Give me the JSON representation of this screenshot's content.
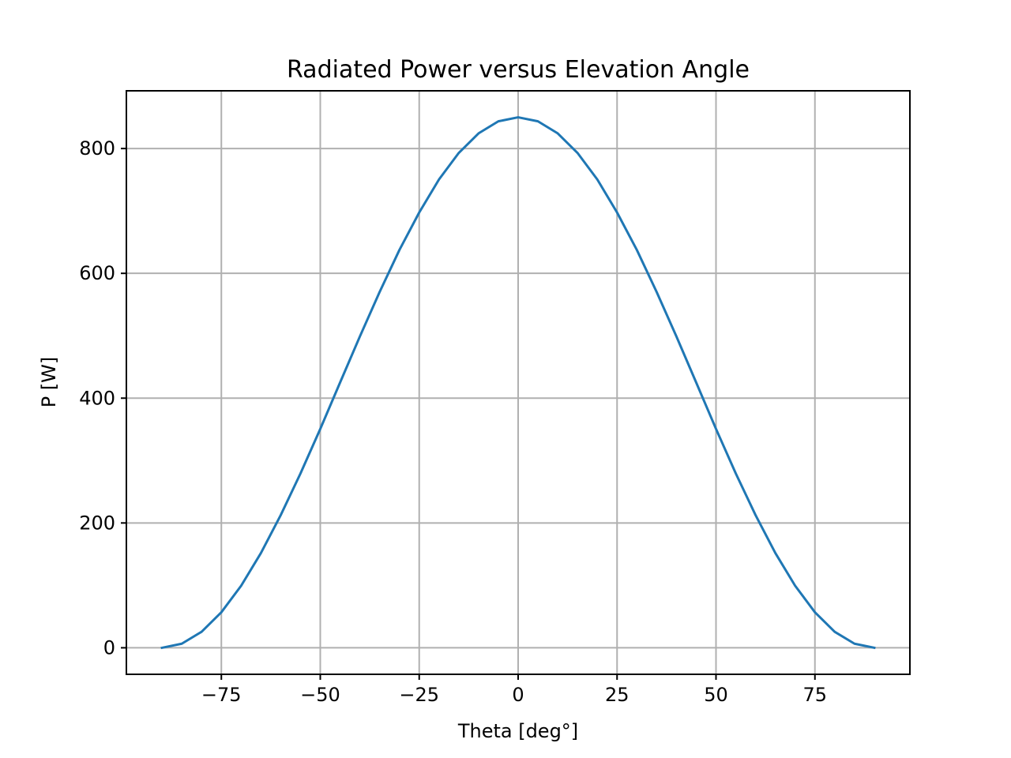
{
  "chart_data": {
    "type": "line",
    "title": "Radiated Power versus Elevation Angle",
    "xlabel": "Theta [deg°]",
    "ylabel": "P [W]",
    "xlim": [
      -99,
      99
    ],
    "ylim": [
      -42.5,
      892.5
    ],
    "x_ticks": [
      -75,
      -50,
      -25,
      0,
      25,
      50,
      75
    ],
    "x_tick_labels": [
      "−75",
      "−50",
      "−25",
      "0",
      "25",
      "50",
      "75"
    ],
    "y_ticks": [
      0,
      200,
      400,
      600,
      800
    ],
    "y_tick_labels": [
      "0",
      "200",
      "400",
      "600",
      "800"
    ],
    "grid": true,
    "legend": "none",
    "series": [
      {
        "color": "#1f77b4",
        "x": [
          -90,
          -85,
          -80,
          -75,
          -70,
          -65,
          -60,
          -55,
          -50,
          -45,
          -40,
          -35,
          -30,
          -25,
          -20,
          -15,
          -10,
          -5,
          0,
          5,
          10,
          15,
          20,
          25,
          30,
          35,
          40,
          45,
          50,
          55,
          60,
          65,
          70,
          75,
          80,
          85,
          90
        ],
        "values": [
          0,
          6.5,
          25.6,
          56.9,
          99.4,
          151.8,
          212.5,
          279.4,
          350.7,
          425,
          498.8,
          570.2,
          637.5,
          697.5,
          750.5,
          793,
          824.3,
          843.6,
          850,
          843.6,
          824.3,
          793,
          750.5,
          697.5,
          637.5,
          570.2,
          498.8,
          425,
          350.7,
          279.4,
          212.5,
          151.8,
          99.4,
          56.9,
          25.6,
          6.5,
          0
        ]
      }
    ]
  }
}
